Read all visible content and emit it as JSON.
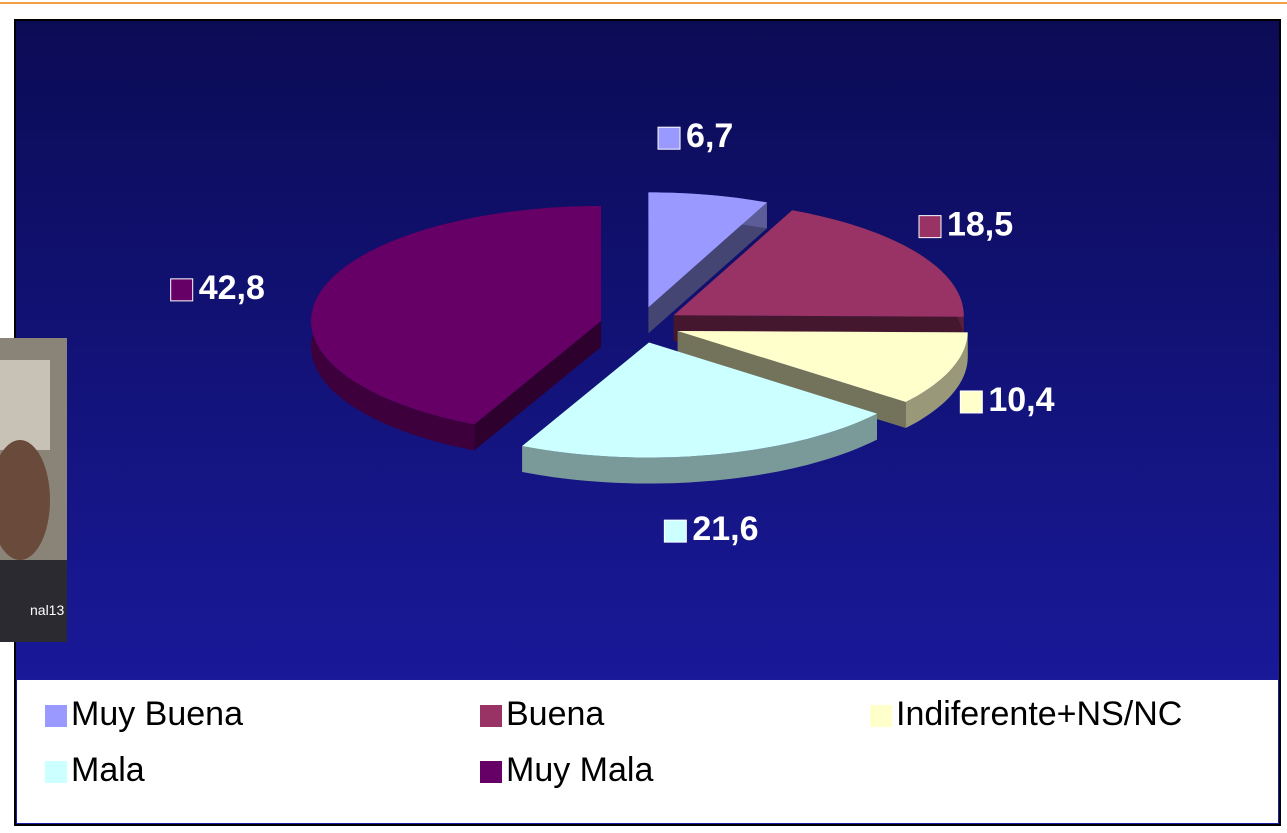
{
  "chart_data": {
    "type": "pie3d",
    "categories": [
      "Muy Buena",
      "Buena",
      "Indiferente+NS/NC",
      "Mala",
      "Muy Mala"
    ],
    "values": [
      6.7,
      18.5,
      10.4,
      21.6,
      42.8
    ],
    "value_labels": [
      "6,7",
      "18,5",
      "10,4",
      "21,6",
      "42,8"
    ],
    "colors": [
      "#9999ff",
      "#993366",
      "#ffffcc",
      "#ccffff",
      "#660066"
    ],
    "legend": "bottom"
  },
  "photo_caption": "nal13"
}
